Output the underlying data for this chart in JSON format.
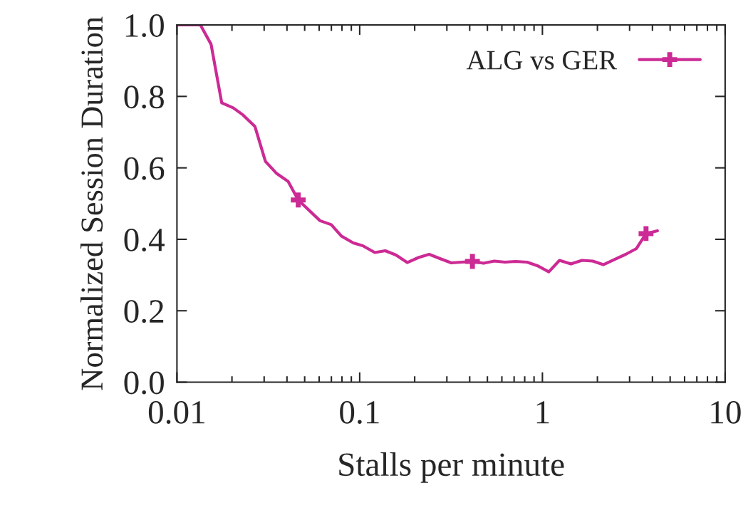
{
  "chart_data": {
    "type": "line",
    "xlabel": "Stalls per minute",
    "ylabel": "Normalized Session Duration",
    "log": "x",
    "xlim": [
      0.01,
      10
    ],
    "xticks": [
      0.01,
      0.1,
      1,
      10
    ],
    "ylim": [
      0,
      1
    ],
    "yticks": [
      {
        "value": 0,
        "label": "0.0"
      },
      {
        "value": 0.2,
        "label": "0.2"
      },
      {
        "value": 0.4,
        "label": "0.4"
      },
      {
        "value": 0.6,
        "label": "0.6"
      },
      {
        "value": 0.8,
        "label": "0.8"
      },
      {
        "value": 1,
        "label": "1.0"
      }
    ],
    "grid": false,
    "legend": "top right",
    "line_style": "solid",
    "x": [
      0.01,
      0.01344,
      0.01537,
      0.01758,
      0.0203,
      0.023,
      0.0267,
      0.0305,
      0.035,
      0.0406,
      0.0461,
      0.0607,
      0.0699,
      0.0794,
      0.0922,
      0.104,
      0.121,
      0.138,
      0.158,
      0.182,
      0.21,
      0.24,
      0.275,
      0.317,
      0.414,
      0.476,
      0.546,
      0.624,
      0.713,
      0.824,
      0.949,
      1.084,
      1.24,
      1.432,
      1.648,
      1.885,
      2.154,
      2.464,
      2.858,
      3.27,
      3.69,
      4.26
    ],
    "series": [
      {
        "name": "ALG vs GER",
        "color": "#cc2a94",
        "values": [
          1.0,
          1.0,
          0.946,
          0.782,
          0.768,
          0.748,
          0.716,
          0.618,
          0.585,
          0.562,
          0.51,
          0.452,
          0.441,
          0.409,
          0.39,
          0.382,
          0.363,
          0.368,
          0.356,
          0.335,
          0.349,
          0.358,
          0.346,
          0.334,
          0.338,
          0.333,
          0.339,
          0.336,
          0.338,
          0.336,
          0.325,
          0.309,
          0.341,
          0.331,
          0.341,
          0.339,
          0.329,
          0.343,
          0.358,
          0.374,
          0.416,
          0.424
        ]
      },
      {
        "type": "scatter",
        "marker": "cross",
        "color": "#cc2a94",
        "x": [
          0.0461,
          0.414,
          3.69
        ],
        "values": [
          0.51,
          0.338,
          0.416
        ]
      }
    ]
  }
}
